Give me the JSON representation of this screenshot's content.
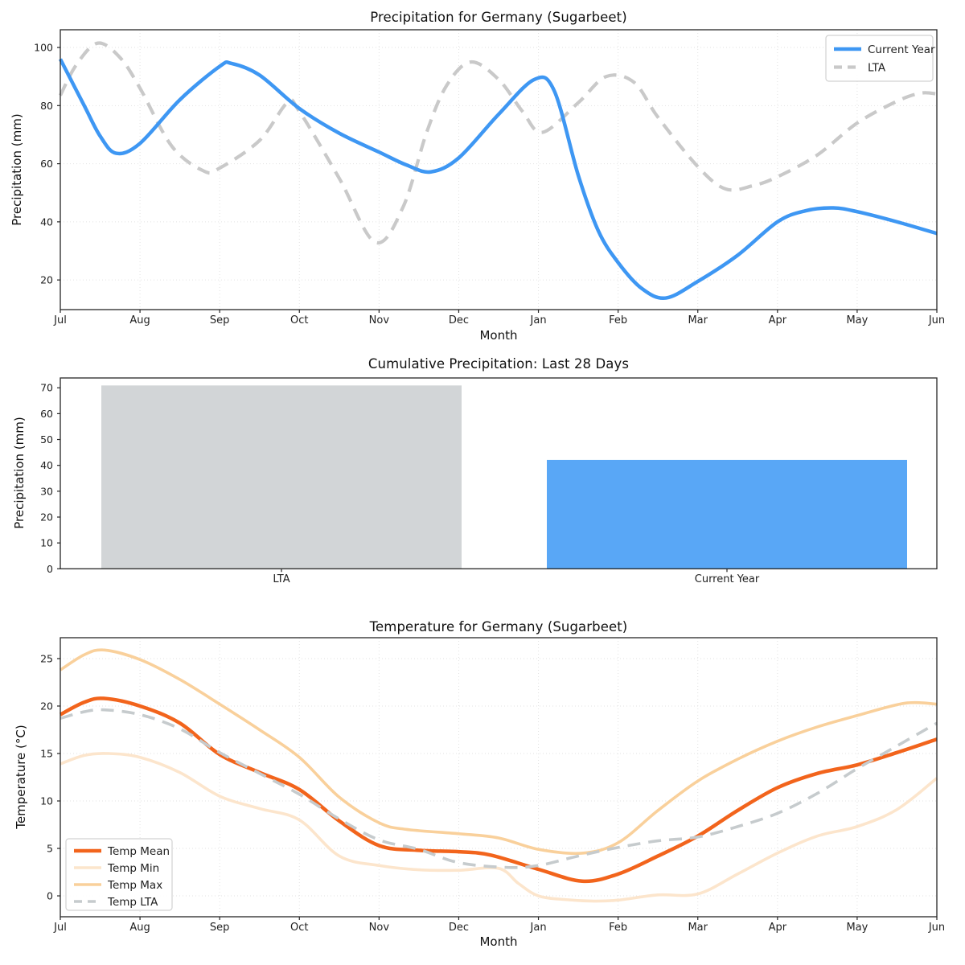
{
  "style": {
    "axis_color": "#262626",
    "tick_label_color": "#1f1f1f",
    "grid_color": "#e2e2e2",
    "legend_border_color": "#d2d2d2",
    "legend_bg_color": "#ffffff",
    "accent_blue": "#3e97f3",
    "bar_blue": "#59a7f6",
    "bar_gray": "#d2d5d7",
    "lta_gray": "#c9c9c9",
    "mean_orange": "#f2641c",
    "max_light_orange": "#f9d09b",
    "min_pale_peach": "#fce5cc"
  },
  "chart_data": [
    {
      "type": "line",
      "title": "Precipitation for Germany (Sugarbeet)",
      "xlabel": "Month",
      "ylabel": "Precipitation (mm)",
      "x_tick_labels": [
        "Jul",
        "Aug",
        "Sep",
        "Oct",
        "Nov",
        "Dec",
        "Jan",
        "Feb",
        "Mar",
        "Apr",
        "May",
        "Jun"
      ],
      "y_ticks": [
        20,
        40,
        60,
        80,
        100
      ],
      "xlim": [
        0,
        11
      ],
      "ylim": [
        9.8,
        106.1
      ],
      "grid": true,
      "legend_position": "upper right",
      "draw_order": [
        1,
        0
      ],
      "series": [
        {
          "name": "Current Year",
          "color": "#3e97f3",
          "dash": "solid",
          "width": 4.5,
          "x": [
            0,
            0.3,
            0.5,
            0.7,
            1,
            1.5,
            2,
            2.15,
            2.5,
            3,
            3.5,
            4,
            4.35,
            4.65,
            5,
            5.5,
            5.95,
            6.2,
            6.5,
            6.75,
            7,
            7.3,
            7.6,
            8,
            8.5,
            9,
            9.35,
            9.7,
            10,
            10.5,
            11
          ],
          "y": [
            96,
            80,
            69.5,
            63.6,
            67,
            82,
            93.5,
            94.5,
            90.5,
            79,
            70.5,
            64,
            59.5,
            57.2,
            62,
            77,
            89,
            85,
            56,
            37,
            26,
            17,
            13.8,
            19.5,
            28.5,
            40,
            43.8,
            44.8,
            43.5,
            40,
            36
          ]
        },
        {
          "name": "LTA",
          "color": "#c9c9c9",
          "dash": "dashed",
          "width": 4.2,
          "x": [
            0,
            0.2,
            0.47,
            0.75,
            1,
            1.4,
            1.8,
            2,
            2.5,
            2.85,
            3,
            3.5,
            3.95,
            4.3,
            4.6,
            4.85,
            5.15,
            5.5,
            5.8,
            6.05,
            6.5,
            6.85,
            7.2,
            7.5,
            8,
            8.35,
            8.7,
            9,
            9.5,
            10,
            10.5,
            10.8,
            11
          ],
          "y": [
            83.5,
            94,
            101.5,
            96.5,
            86,
            66,
            57.5,
            58.5,
            68,
            81,
            78,
            55,
            33,
            45,
            71,
            87,
            95,
            89,
            78,
            70.8,
            81,
            90,
            88,
            76,
            59,
            51.3,
            52.5,
            55.5,
            63,
            74,
            81.5,
            84.3,
            84
          ]
        }
      ]
    },
    {
      "type": "bar",
      "title": "Cumulative Precipitation: Last 28 Days",
      "ylabel": "Precipitation (mm)",
      "categories": [
        "LTA",
        "Current Year"
      ],
      "values": [
        70.9,
        42.1
      ],
      "bar_colors": [
        "#d2d5d7",
        "#59a7f6"
      ],
      "y_ticks": [
        0,
        10,
        20,
        30,
        40,
        50,
        60,
        70
      ],
      "ylim": [
        0,
        73.8
      ],
      "grid": false
    },
    {
      "type": "line",
      "title": "Temperature for Germany (Sugarbeet)",
      "xlabel": "Month",
      "ylabel": "Temperature (°C)",
      "x_tick_labels": [
        "Jul",
        "Aug",
        "Sep",
        "Oct",
        "Nov",
        "Dec",
        "Jan",
        "Feb",
        "Mar",
        "Apr",
        "May",
        "Jun"
      ],
      "y_ticks": [
        0,
        5,
        10,
        15,
        20,
        25
      ],
      "xlim": [
        0,
        11
      ],
      "ylim": [
        -2.2,
        27.2
      ],
      "grid": true,
      "legend_position": "lower left",
      "draw_order": [
        1,
        2,
        0,
        3
      ],
      "series": [
        {
          "name": "Temp Mean",
          "color": "#f2641c",
          "dash": "solid",
          "width": 4.5,
          "x": [
            0,
            0.3,
            0.55,
            1,
            1.5,
            2,
            2.5,
            3,
            3.5,
            4,
            4.5,
            5,
            5.4,
            6,
            6.55,
            7,
            7.5,
            8,
            8.5,
            9,
            9.5,
            10,
            10.5,
            11
          ],
          "y": [
            19.1,
            20.4,
            20.8,
            20,
            18.2,
            14.9,
            13,
            11.2,
            7.9,
            5.3,
            4.8,
            4.65,
            4.3,
            2.8,
            1.55,
            2.3,
            4.2,
            6.3,
            9,
            11.4,
            12.9,
            13.8,
            15.1,
            16.5
          ]
        },
        {
          "name": "Temp Min",
          "color": "#fce5cc",
          "dash": "solid",
          "width": 3.6,
          "x": [
            0,
            0.3,
            0.6,
            1,
            1.5,
            2,
            2.5,
            3,
            3.5,
            4,
            4.5,
            5,
            5.5,
            5.75,
            6,
            6.35,
            6.7,
            7,
            7.5,
            8,
            8.5,
            9,
            9.5,
            10,
            10.5,
            11
          ],
          "y": [
            13.9,
            14.8,
            15,
            14.6,
            13,
            10.5,
            9.2,
            8,
            4.2,
            3.2,
            2.75,
            2.7,
            2.9,
            1.3,
            0,
            -0.4,
            -0.55,
            -0.45,
            0.1,
            0.2,
            2.3,
            4.5,
            6.3,
            7.3,
            9.1,
            12.4
          ]
        },
        {
          "name": "Temp Max",
          "color": "#f9d09b",
          "dash": "solid",
          "width": 3.6,
          "x": [
            0,
            0.3,
            0.55,
            1,
            1.5,
            2,
            2.5,
            3,
            3.5,
            4,
            4.35,
            5,
            5.5,
            6,
            6.55,
            7,
            7.5,
            8,
            8.5,
            9,
            9.5,
            10,
            10.6,
            11
          ],
          "y": [
            23.8,
            25.4,
            25.9,
            24.9,
            22.8,
            20.2,
            17.5,
            14.6,
            10.4,
            7.7,
            7,
            6.55,
            6.1,
            4.9,
            4.5,
            5.6,
            9,
            12.1,
            14.4,
            16.3,
            17.8,
            19,
            20.3,
            20.2
          ]
        },
        {
          "name": "Temp LTA",
          "color": "#c6cbcd",
          "dash": "dashed",
          "width": 3.6,
          "x": [
            0,
            0.3,
            0.55,
            1,
            1.5,
            2,
            2.5,
            3,
            3.5,
            4,
            4.5,
            5,
            5.6,
            6,
            6.5,
            7,
            7.5,
            8,
            8.5,
            9,
            9.5,
            10,
            10.5,
            11
          ],
          "y": [
            18.7,
            19.4,
            19.6,
            19.1,
            17.6,
            15.1,
            12.9,
            10.7,
            8.1,
            5.9,
            4.9,
            3.5,
            3,
            3.2,
            4.2,
            5.1,
            5.8,
            6.2,
            7.3,
            8.7,
            10.8,
            13.4,
            15.8,
            18.2
          ]
        }
      ]
    }
  ]
}
